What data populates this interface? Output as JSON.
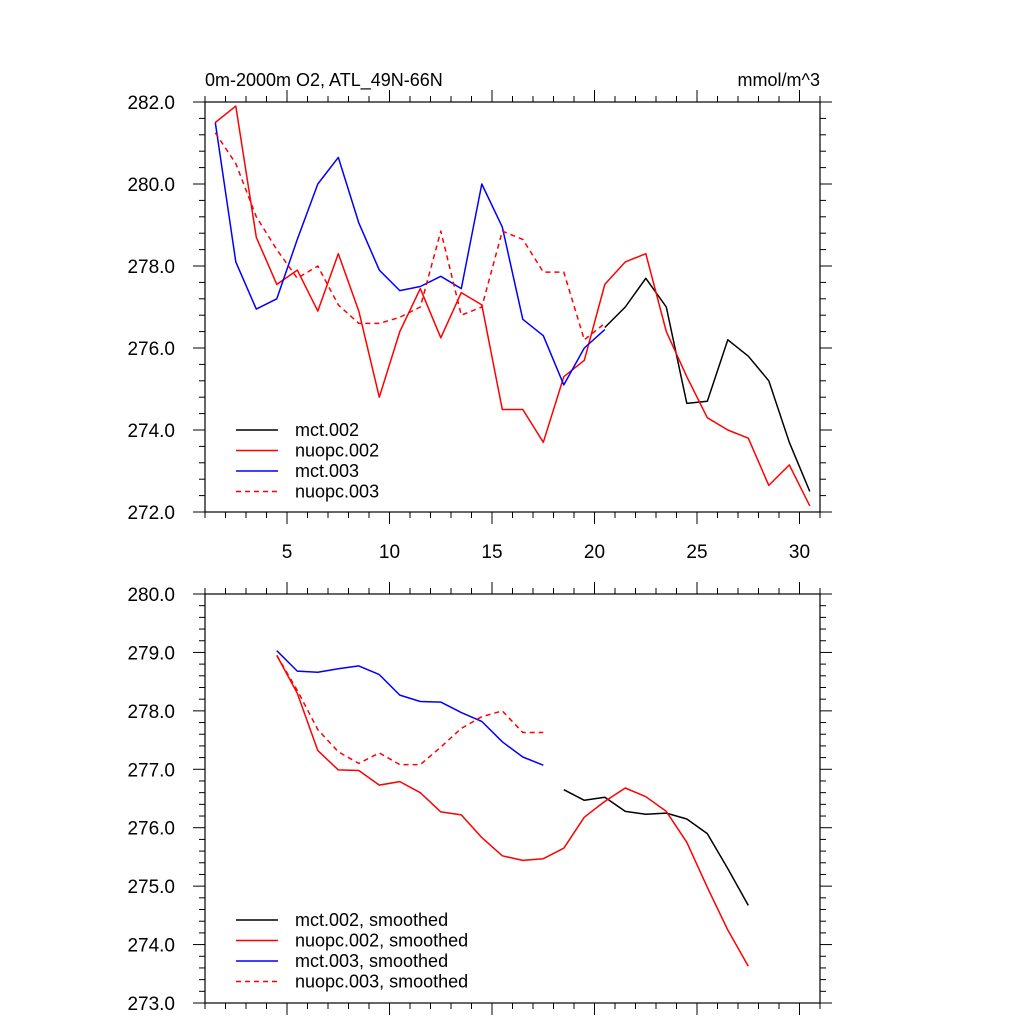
{
  "chart_data": [
    {
      "type": "line",
      "title": "0m-2000m O2, ATL_49N-66N",
      "units": "mmol/m^3",
      "xlim": [
        1,
        31
      ],
      "ylim": [
        272,
        282
      ],
      "xticks": [
        5,
        10,
        15,
        20,
        25,
        30
      ],
      "xtick_labels": [
        "5",
        "10",
        "15",
        "20",
        "25",
        "30"
      ],
      "yticks": [
        272,
        274,
        276,
        278,
        280,
        282
      ],
      "ytick_labels": [
        "272.0",
        "274.0",
        "276.0",
        "278.0",
        "280.0",
        "282.0"
      ],
      "legend_position": "bottom-left",
      "series": [
        {
          "name": "mct.002",
          "color": "#000000",
          "dash": "solid",
          "x": [
            20.5,
            21.5,
            22.5,
            23.5,
            24.5,
            25.5,
            26.5,
            27.5,
            28.5,
            29.5,
            30.5
          ],
          "y": [
            276.5,
            277.0,
            277.7,
            277.0,
            274.65,
            274.7,
            276.2,
            275.8,
            275.2,
            273.7,
            272.5
          ]
        },
        {
          "name": "nuopc.002",
          "color": "#ff0000",
          "dash": "solid",
          "x": [
            1.5,
            2.5,
            3.5,
            4.5,
            5.5,
            6.5,
            7.5,
            8.5,
            9.5,
            10.5,
            11.5,
            12.5,
            13.5,
            14.5,
            15.5,
            16.5,
            17.5,
            18.5,
            19.5,
            20.5,
            21.5,
            22.5,
            23.5,
            24.5,
            25.5,
            26.5,
            27.5,
            28.5,
            29.5,
            30.5
          ],
          "y": [
            281.5,
            281.9,
            278.7,
            277.55,
            277.9,
            276.9,
            278.3,
            276.9,
            274.8,
            276.4,
            277.45,
            276.25,
            277.35,
            277.05,
            274.5,
            274.5,
            273.7,
            275.3,
            275.7,
            277.55,
            278.1,
            278.3,
            276.4,
            275.3,
            274.3,
            274.0,
            273.8,
            272.65,
            273.15,
            272.15
          ]
        },
        {
          "name": "mct.003",
          "color": "#0000ff",
          "dash": "solid",
          "x": [
            1.5,
            2.5,
            3.5,
            4.5,
            5.5,
            6.5,
            7.5,
            8.5,
            9.5,
            10.5,
            11.5,
            12.5,
            13.5,
            14.5,
            15.5,
            16.5,
            17.5,
            18.5,
            19.5,
            20.5
          ],
          "y": [
            281.5,
            278.1,
            276.95,
            277.2,
            278.65,
            280.0,
            280.65,
            279.05,
            277.9,
            277.4,
            277.5,
            277.75,
            277.45,
            280.0,
            278.95,
            276.7,
            276.3,
            275.1,
            276.0,
            276.45
          ]
        },
        {
          "name": "nuopc.003",
          "color": "#ff0000",
          "dash": "dashed",
          "x": [
            1.5,
            2.5,
            3.5,
            4.5,
            5.5,
            6.5,
            7.5,
            8.5,
            9.5,
            10.5,
            11.5,
            12.5,
            13.5,
            14.5,
            15.5,
            16.5,
            17.5,
            18.5,
            19.5,
            20.5
          ],
          "y": [
            281.25,
            280.5,
            279.2,
            278.4,
            277.7,
            278.0,
            277.05,
            276.6,
            276.6,
            276.75,
            277.0,
            278.85,
            276.8,
            277.0,
            278.85,
            278.65,
            277.85,
            277.85,
            276.2,
            276.6
          ]
        }
      ]
    },
    {
      "type": "line",
      "xlim": [
        1,
        31
      ],
      "ylim": [
        273,
        280
      ],
      "xticks": [
        5,
        10,
        15,
        20,
        25,
        30
      ],
      "yticks": [
        273,
        274,
        275,
        276,
        277,
        278,
        279,
        280
      ],
      "ytick_labels": [
        "273.0",
        "274.0",
        "275.0",
        "276.0",
        "277.0",
        "278.0",
        "279.0",
        "280.0"
      ],
      "legend_position": "bottom-left",
      "series": [
        {
          "name": "mct.002, smoothed",
          "color": "#000000",
          "dash": "solid",
          "x": [
            18.5,
            19.5,
            20.5,
            21.5,
            22.5,
            23.5,
            24.5,
            25.5,
            26.5,
            27.5
          ],
          "y": [
            276.65,
            276.47,
            276.52,
            276.28,
            276.23,
            276.25,
            276.15,
            275.9,
            275.3,
            274.67
          ]
        },
        {
          "name": "nuopc.002, smoothed",
          "color": "#ff0000",
          "dash": "solid",
          "x": [
            4.5,
            5.5,
            6.5,
            7.5,
            8.5,
            9.5,
            10.5,
            11.5,
            12.5,
            13.5,
            14.5,
            15.5,
            16.5,
            17.5,
            18.5,
            19.5,
            20.5,
            21.5,
            22.5,
            23.5,
            24.5,
            25.5,
            26.5,
            27.5
          ],
          "y": [
            278.95,
            278.3,
            277.32,
            276.99,
            276.98,
            276.73,
            276.79,
            276.6,
            276.27,
            276.22,
            275.83,
            275.52,
            275.44,
            275.47,
            275.65,
            276.18,
            276.45,
            276.68,
            276.53,
            276.28,
            275.75,
            274.98,
            274.25,
            273.63
          ]
        },
        {
          "name": "mct.003, smoothed",
          "color": "#0000ff",
          "dash": "solid",
          "x": [
            4.5,
            5.5,
            6.5,
            7.5,
            8.5,
            9.5,
            10.5,
            11.5,
            12.5,
            13.5,
            14.5,
            15.5,
            16.5,
            17.5
          ],
          "y": [
            279.03,
            278.68,
            278.66,
            278.72,
            278.77,
            278.62,
            278.27,
            278.16,
            278.15,
            277.97,
            277.82,
            277.47,
            277.21,
            277.07
          ]
        },
        {
          "name": "nuopc.003, smoothed",
          "color": "#ff0000",
          "dash": "dashed",
          "x": [
            4.5,
            5.5,
            6.5,
            7.5,
            8.5,
            9.5,
            10.5,
            11.5,
            12.5,
            13.5,
            14.5,
            15.5,
            16.5,
            17.5
          ],
          "y": [
            278.95,
            278.35,
            277.68,
            277.3,
            277.1,
            277.28,
            277.08,
            277.08,
            277.38,
            277.7,
            277.9,
            278.0,
            277.63,
            277.63
          ]
        }
      ]
    }
  ]
}
